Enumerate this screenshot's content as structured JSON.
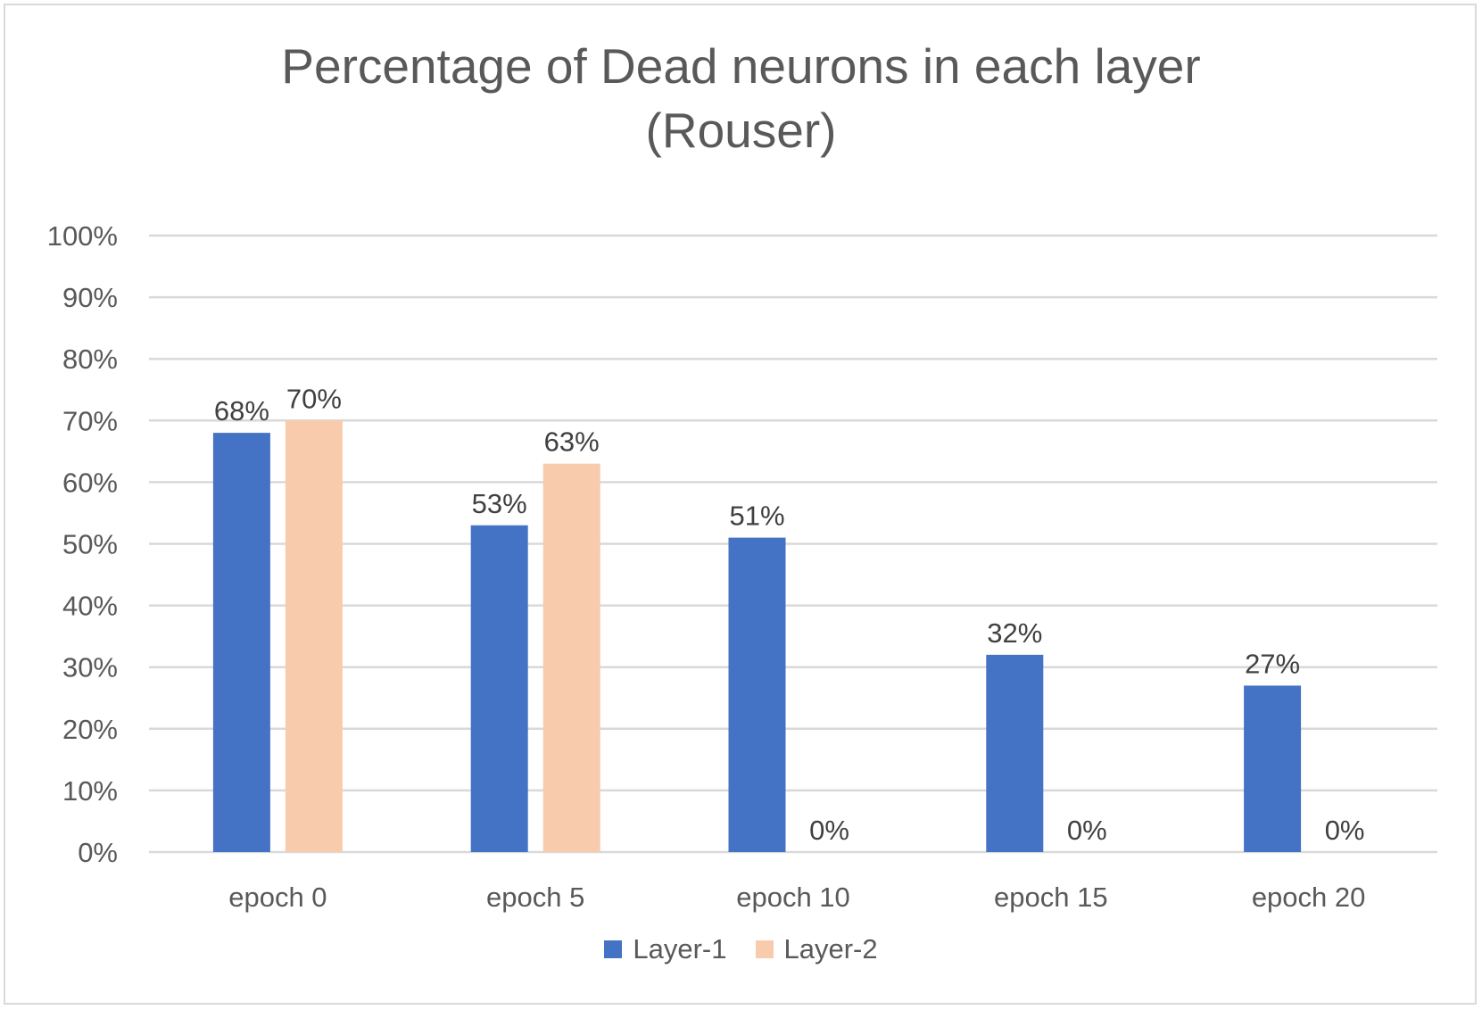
{
  "chart_data": {
    "type": "bar",
    "title": "Percentage of Dead neurons in each layer\n(Rouser)",
    "xlabel": "",
    "ylabel": "",
    "categories": [
      "epoch 0",
      "epoch 5",
      "epoch 10",
      "epoch 15",
      "epoch 20"
    ],
    "series": [
      {
        "name": "Layer-1",
        "color": "#4472c4",
        "values": [
          0.68,
          0.53,
          0.51,
          0.32,
          0.27
        ],
        "labels": [
          "68%",
          "53%",
          "51%",
          "32%",
          "27%"
        ]
      },
      {
        "name": "Layer-2",
        "color": "#f8cbad",
        "values": [
          0.7,
          0.63,
          0,
          0,
          0
        ],
        "labels": [
          "70%",
          "63%",
          "0%",
          "0%",
          "0%"
        ]
      }
    ],
    "ylim": [
      0,
      1
    ],
    "yticks": [
      "0%",
      "10%",
      "20%",
      "30%",
      "40%",
      "50%",
      "60%",
      "70%",
      "80%",
      "90%",
      "100%"
    ],
    "grid": true,
    "legend_position": "bottom"
  }
}
